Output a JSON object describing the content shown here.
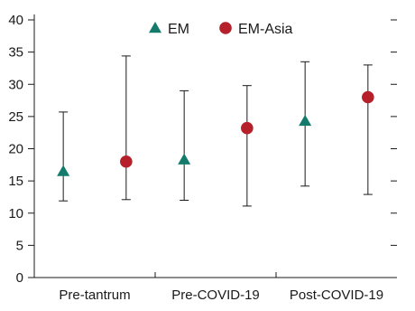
{
  "chart_data": {
    "type": "scatter",
    "title": "",
    "xlabel": "",
    "ylabel": "",
    "ylim": [
      0,
      40
    ],
    "yticks": [
      0,
      5,
      10,
      15,
      20,
      25,
      30,
      35,
      40
    ],
    "categories": [
      "Pre-tantrum",
      "Pre-COVID-19",
      "Post-COVID-19"
    ],
    "legend_position": "top",
    "grid": false,
    "series": [
      {
        "name": "EM",
        "marker": "triangle",
        "color": "#147a6b",
        "values": [
          16.5,
          18.3,
          24.3
        ],
        "error_low": [
          11.9,
          12.0,
          14.2
        ],
        "error_high": [
          25.7,
          29.0,
          33.5
        ]
      },
      {
        "name": "EM-Asia",
        "marker": "circle",
        "color": "#b5202a",
        "values": [
          18.0,
          23.2,
          28.0
        ],
        "error_low": [
          12.1,
          11.1,
          12.9
        ],
        "error_high": [
          34.4,
          29.8,
          33.0
        ]
      }
    ]
  }
}
